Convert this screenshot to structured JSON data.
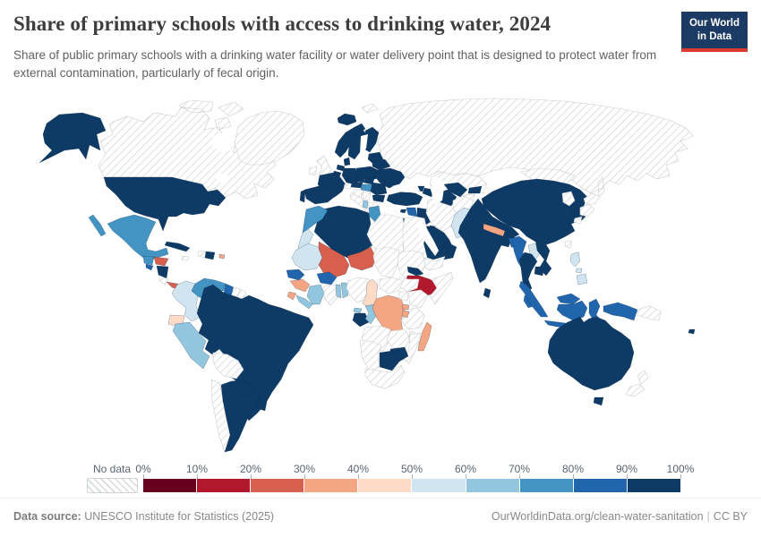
{
  "header": {
    "title": "Share of primary schools with access to drinking water, 2024",
    "subtitle": "Share of public primary schools with a drinking water facility or water delivery point that is designed to protect water from external contamination, particularly of fecal origin.",
    "logo": {
      "line1": "Our World",
      "line2": "in Data",
      "bg_color": "#1b3a64",
      "accent_color": "#d93b2e"
    }
  },
  "legend": {
    "no_data_label": "No data",
    "tick_labels": [
      "0%",
      "10%",
      "20%",
      "30%",
      "40%",
      "50%",
      "60%",
      "70%",
      "80%",
      "90%",
      "100%"
    ],
    "band_labels": [
      "0-10%",
      "10-20%",
      "20-30%",
      "30-40%",
      "40-50%",
      "50-60%",
      "60-70%",
      "70-80%",
      "80-90%",
      "90-100%"
    ],
    "palette": [
      "#67001f",
      "#b2182b",
      "#d6604d",
      "#f4a582",
      "#fddbc7",
      "#d1e5f0",
      "#92c5de",
      "#4393c3",
      "#2166ac",
      "#0e3a66"
    ]
  },
  "footer": {
    "source_label": "Data source:",
    "source_text": "UNESCO Institute for Statistics (2025)",
    "link_text": "OurWorldinData.org/clean-water-sanitation",
    "separator": "|",
    "license": "CC BY"
  },
  "chart_data": {
    "type": "choropleth_map",
    "title": "Share of primary schools with access to drinking water, 2024",
    "unit": "% of public primary schools",
    "bands": [
      "0-10%",
      "10-20%",
      "20-30%",
      "30-40%",
      "40-50%",
      "50-60%",
      "60-70%",
      "70-80%",
      "80-90%",
      "90-100%",
      "No data"
    ],
    "countries": [
      {
        "name": "Canada",
        "band": "No data"
      },
      {
        "name": "Greenland",
        "band": "No data"
      },
      {
        "name": "Svalbard",
        "band": "No data"
      },
      {
        "name": "Russia",
        "band": "No data"
      },
      {
        "name": "Kazakhstan",
        "band": "No data"
      },
      {
        "name": "Mongolia",
        "band": "No data"
      },
      {
        "name": "United States",
        "band": "90-100%"
      },
      {
        "name": "Mexico",
        "band": "70-80%"
      },
      {
        "name": "Guatemala",
        "band": "70-80%"
      },
      {
        "name": "Honduras",
        "band": "20-30%"
      },
      {
        "name": "El Salvador",
        "band": "80-90%"
      },
      {
        "name": "Nicaragua",
        "band": "90-100%"
      },
      {
        "name": "Costa Rica",
        "band": "No data"
      },
      {
        "name": "Panama",
        "band": "20-30%"
      },
      {
        "name": "Cuba",
        "band": "90-100%"
      },
      {
        "name": "Jamaica",
        "band": "No data"
      },
      {
        "name": "Haiti",
        "band": "No data"
      },
      {
        "name": "Dominican Republic",
        "band": "90-100%"
      },
      {
        "name": "Puerto Rico",
        "band": "30-40%"
      },
      {
        "name": "Colombia",
        "band": "50-60%"
      },
      {
        "name": "Venezuela",
        "band": "70-80%"
      },
      {
        "name": "Guyana",
        "band": "80-90%"
      },
      {
        "name": "Suriname",
        "band": "No data"
      },
      {
        "name": "French Guiana",
        "band": "No data"
      },
      {
        "name": "Ecuador",
        "band": "40-50%"
      },
      {
        "name": "Peru",
        "band": "60-70%"
      },
      {
        "name": "Brazil",
        "band": "90-100%"
      },
      {
        "name": "Bolivia",
        "band": "No data"
      },
      {
        "name": "Chile",
        "band": "No data"
      },
      {
        "name": "Argentina",
        "band": "90-100%"
      },
      {
        "name": "Paraguay",
        "band": "90-100%"
      },
      {
        "name": "Uruguay",
        "band": "90-100%"
      },
      {
        "name": "Iceland",
        "band": "90-100%"
      },
      {
        "name": "United Kingdom",
        "band": "No data"
      },
      {
        "name": "Ireland",
        "band": "No data"
      },
      {
        "name": "Norway",
        "band": "90-100%"
      },
      {
        "name": "Sweden",
        "band": "90-100%"
      },
      {
        "name": "Finland",
        "band": "90-100%"
      },
      {
        "name": "Denmark",
        "band": "90-100%"
      },
      {
        "name": "Baltic states",
        "band": "90-100%"
      },
      {
        "name": "Poland",
        "band": "90-100%"
      },
      {
        "name": "Germany",
        "band": "90-100%"
      },
      {
        "name": "Netherlands",
        "band": "90-100%"
      },
      {
        "name": "Belgium",
        "band": "90-100%"
      },
      {
        "name": "France",
        "band": "90-100%"
      },
      {
        "name": "Spain",
        "band": "90-100%"
      },
      {
        "name": "Portugal",
        "band": "90-100%"
      },
      {
        "name": "Switzerland",
        "band": "No data"
      },
      {
        "name": "Italy",
        "band": "No data"
      },
      {
        "name": "Austria",
        "band": "90-100%"
      },
      {
        "name": "Czechia",
        "band": "90-100%"
      },
      {
        "name": "Slovakia",
        "band": "90-100%"
      },
      {
        "name": "Hungary",
        "band": "70-80%"
      },
      {
        "name": "Croatia & Bosnia",
        "band": "No data"
      },
      {
        "name": "Serbia",
        "band": "No data"
      },
      {
        "name": "Albania",
        "band": "60-70%"
      },
      {
        "name": "Greece",
        "band": "No data"
      },
      {
        "name": "Romania",
        "band": "90-100%"
      },
      {
        "name": "Bulgaria",
        "band": "90-100%"
      },
      {
        "name": "Moldova",
        "band": "90-100%"
      },
      {
        "name": "Ukraine",
        "band": "90-100%"
      },
      {
        "name": "Belarus",
        "band": "90-100%"
      },
      {
        "name": "Turkey",
        "band": "90-100%"
      },
      {
        "name": "Cyprus",
        "band": "90-100%"
      },
      {
        "name": "Georgia",
        "band": "90-100%"
      },
      {
        "name": "Azerbaijan",
        "band": "90-100%"
      },
      {
        "name": "Syria",
        "band": "80-90%"
      },
      {
        "name": "Israel",
        "band": "90-100%"
      },
      {
        "name": "Jordan",
        "band": "90-100%"
      },
      {
        "name": "Iraq",
        "band": "90-100%"
      },
      {
        "name": "Kuwait",
        "band": "90-100%"
      },
      {
        "name": "Saudi Arabia",
        "band": "90-100%"
      },
      {
        "name": "Yemen",
        "band": "No data"
      },
      {
        "name": "Oman",
        "band": "90-100%"
      },
      {
        "name": "United Arab Emirates",
        "band": "90-100%"
      },
      {
        "name": "Iran",
        "band": "No data"
      },
      {
        "name": "Turkmenistan",
        "band": "90-100%"
      },
      {
        "name": "Uzbekistan",
        "band": "90-100%"
      },
      {
        "name": "Kyrgyzstan",
        "band": "90-100%"
      },
      {
        "name": "Tajikistan",
        "band": "No data"
      },
      {
        "name": "Afghanistan",
        "band": "No data"
      },
      {
        "name": "Pakistan",
        "band": "50-60%"
      },
      {
        "name": "India",
        "band": "90-100%"
      },
      {
        "name": "Nepal",
        "band": "30-40%"
      },
      {
        "name": "Bhutan",
        "band": "90-100%"
      },
      {
        "name": "Bangladesh",
        "band": "80-90%"
      },
      {
        "name": "Sri Lanka",
        "band": "90-100%"
      },
      {
        "name": "China",
        "band": "90-100%"
      },
      {
        "name": "North Korea",
        "band": "No data"
      },
      {
        "name": "South Korea",
        "band": "90-100%"
      },
      {
        "name": "Japan",
        "band": "No data"
      },
      {
        "name": "Taiwan",
        "band": "No data"
      },
      {
        "name": "Myanmar",
        "band": "80-90%"
      },
      {
        "name": "Laos",
        "band": "50-60%"
      },
      {
        "name": "Thailand",
        "band": "90-100%"
      },
      {
        "name": "Cambodia",
        "band": "90-100%"
      },
      {
        "name": "Vietnam",
        "band": "90-100%"
      },
      {
        "name": "Malaysia",
        "band": "80-90%"
      },
      {
        "name": "Indonesia",
        "band": "80-90%"
      },
      {
        "name": "Philippines",
        "band": "50-60%"
      },
      {
        "name": "Papua New Guinea",
        "band": "No data"
      },
      {
        "name": "Australia",
        "band": "90-100%"
      },
      {
        "name": "New Zealand",
        "band": "No data"
      },
      {
        "name": "Fiji",
        "band": "90-100%"
      },
      {
        "name": "Algeria",
        "band": "90-100%"
      },
      {
        "name": "Morocco",
        "band": "70-80%"
      },
      {
        "name": "Western Sahara",
        "band": "50-60%"
      },
      {
        "name": "Tunisia",
        "band": "70-80%"
      },
      {
        "name": "Libya",
        "band": "No data"
      },
      {
        "name": "Egypt",
        "band": "No data"
      },
      {
        "name": "Mauritania",
        "band": "50-60%"
      },
      {
        "name": "Mali",
        "band": "20-30%"
      },
      {
        "name": "Niger",
        "band": "20-30%"
      },
      {
        "name": "Chad",
        "band": "No data"
      },
      {
        "name": "Sudan",
        "band": "No data"
      },
      {
        "name": "Eritrea",
        "band": "90-100%"
      },
      {
        "name": "Ethiopia",
        "band": "10-20%"
      },
      {
        "name": "Somalia",
        "band": "No data"
      },
      {
        "name": "South Sudan",
        "band": "No data"
      },
      {
        "name": "Senegal",
        "band": "80-90%"
      },
      {
        "name": "Guinea",
        "band": "30-40%"
      },
      {
        "name": "Sierra Leone",
        "band": "30-40%"
      },
      {
        "name": "Liberia",
        "band": "60-70%"
      },
      {
        "name": "Côte d'Ivoire",
        "band": "60-70%"
      },
      {
        "name": "Burkina Faso",
        "band": "80-90%"
      },
      {
        "name": "Ghana",
        "band": "No data"
      },
      {
        "name": "Togo",
        "band": "60-70%"
      },
      {
        "name": "Benin",
        "band": "60-70%"
      },
      {
        "name": "Nigeria",
        "band": "No data"
      },
      {
        "name": "Cameroon",
        "band": "40-50%"
      },
      {
        "name": "Central African Republic",
        "band": "No data"
      },
      {
        "name": "Equatorial Guinea",
        "band": "60-70%"
      },
      {
        "name": "Gabon",
        "band": "90-100%"
      },
      {
        "name": "Congo",
        "band": "60-70%"
      },
      {
        "name": "DR Congo",
        "band": "30-40%"
      },
      {
        "name": "Uganda",
        "band": "No data"
      },
      {
        "name": "Kenya",
        "band": "No data"
      },
      {
        "name": "Tanzania",
        "band": "No data"
      },
      {
        "name": "Rwanda",
        "band": "30-40%"
      },
      {
        "name": "Burundi",
        "band": "30-40%"
      },
      {
        "name": "Angola",
        "band": "No data"
      },
      {
        "name": "Zambia",
        "band": "No data"
      },
      {
        "name": "Malawi",
        "band": "No data"
      },
      {
        "name": "Mozambique",
        "band": "No data"
      },
      {
        "name": "Zimbabwe",
        "band": "90-100%"
      },
      {
        "name": "Botswana",
        "band": "90-100%"
      },
      {
        "name": "Namibia",
        "band": "No data"
      },
      {
        "name": "South Africa",
        "band": "No data"
      },
      {
        "name": "Madagascar",
        "band": "30-40%"
      }
    ]
  }
}
